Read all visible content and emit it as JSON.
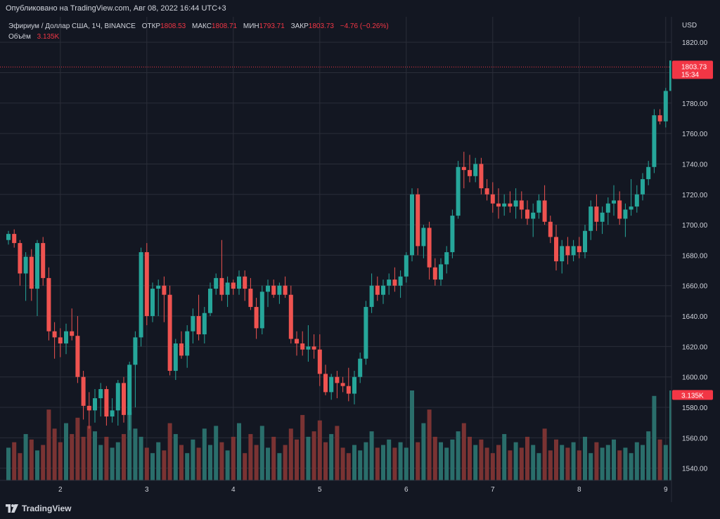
{
  "header": {
    "published": "Опубликовано на TradingView.com, Авг 08, 2022 16:44 UTC+3"
  },
  "legend": {
    "symbol": "Эфириум / Доллар США, 1Ч, BINANCE",
    "open_label": "ОТКР",
    "open": "1808.53",
    "high_label": "МАКС",
    "high": "1808.71",
    "low_label": "МИН",
    "low": "1793.71",
    "close_label": "ЗАКР",
    "close": "1803.73",
    "change": "−4.76 (−0.26%)",
    "volume_label": "Объём",
    "volume": "3.135K"
  },
  "footer": {
    "brand": "TradingView",
    "logo_icon": "tradingview-logo-icon"
  },
  "colors": {
    "background": "#131722",
    "grid": "#2a2e39",
    "up": "#26a69a",
    "down": "#ef5350",
    "up_volume": "#2a6e6b",
    "down_volume": "#7a3333",
    "price_marker": "#f23645",
    "text": "#d1d4dc"
  },
  "chart_data": {
    "type": "candlestick",
    "currency": "USD",
    "price_axis": {
      "ticks": [
        "1820.00",
        "1800.00",
        "1780.00",
        "1760.00",
        "1740.00",
        "1720.00",
        "1700.00",
        "1680.00",
        "1660.00",
        "1640.00",
        "1620.00",
        "1600.00",
        "1580.00",
        "1560.00",
        "1540.00"
      ],
      "ylim": [
        1532,
        1833
      ]
    },
    "time_axis": {
      "ticks": [
        "2",
        "3",
        "4",
        "5",
        "6",
        "7",
        "8",
        "9"
      ],
      "tick_bar_index": [
        9,
        24,
        39,
        54,
        69,
        84,
        99,
        114
      ]
    },
    "last_price": {
      "value": "1803.73",
      "countdown": "15:34"
    },
    "last_volume": "3.135K",
    "volume_max": 3.3,
    "candles": [
      [
        1690,
        1696,
        1687,
        1694,
        1.2
      ],
      [
        1694,
        1697,
        1685,
        1688,
        1.4
      ],
      [
        1688,
        1690,
        1660,
        1668,
        1.0
      ],
      [
        1668,
        1682,
        1650,
        1679,
        1.7
      ],
      [
        1679,
        1684,
        1650,
        1658,
        1.5
      ],
      [
        1658,
        1690,
        1640,
        1688,
        1.1
      ],
      [
        1688,
        1692,
        1660,
        1665,
        1.3
      ],
      [
        1665,
        1672,
        1624,
        1630,
        2.6
      ],
      [
        1630,
        1636,
        1612,
        1626,
        1.9
      ],
      [
        1626,
        1632,
        1613,
        1622,
        1.4
      ],
      [
        1622,
        1635,
        1615,
        1630,
        2.1
      ],
      [
        1630,
        1645,
        1624,
        1627,
        1.7
      ],
      [
        1627,
        1640,
        1596,
        1600,
        2.3
      ],
      [
        1600,
        1604,
        1572,
        1581,
        1.6
      ],
      [
        1581,
        1590,
        1566,
        1578,
        2.0
      ],
      [
        1578,
        1592,
        1570,
        1586,
        1.8
      ],
      [
        1586,
        1596,
        1574,
        1592,
        1.3
      ],
      [
        1592,
        1594,
        1568,
        1574,
        1.6
      ],
      [
        1574,
        1586,
        1570,
        1578,
        1.2
      ],
      [
        1578,
        1598,
        1568,
        1596,
        1.4
      ],
      [
        1596,
        1600,
        1570,
        1575,
        1.7
      ],
      [
        1575,
        1610,
        1565,
        1608,
        2.5
      ],
      [
        1608,
        1630,
        1580,
        1626,
        1.9
      ],
      [
        1626,
        1685,
        1620,
        1682,
        1.6
      ],
      [
        1682,
        1688,
        1634,
        1640,
        1.2
      ],
      [
        1640,
        1662,
        1636,
        1658,
        1.0
      ],
      [
        1658,
        1664,
        1640,
        1660,
        1.4
      ],
      [
        1660,
        1666,
        1636,
        1654,
        1.1
      ],
      [
        1654,
        1660,
        1601,
        1604,
        2.1
      ],
      [
        1604,
        1625,
        1598,
        1622,
        1.7
      ],
      [
        1622,
        1630,
        1612,
        1614,
        1.3
      ],
      [
        1614,
        1634,
        1606,
        1630,
        1.0
      ],
      [
        1630,
        1645,
        1622,
        1640,
        1.5
      ],
      [
        1640,
        1654,
        1624,
        1628,
        1.2
      ],
      [
        1628,
        1646,
        1622,
        1642,
        1.9
      ],
      [
        1642,
        1662,
        1640,
        1658,
        1.3
      ],
      [
        1658,
        1668,
        1654,
        1665,
        2.0
      ],
      [
        1665,
        1690,
        1650,
        1654,
        1.4
      ],
      [
        1654,
        1666,
        1646,
        1662,
        1.1
      ],
      [
        1662,
        1664,
        1654,
        1658,
        1.6
      ],
      [
        1658,
        1670,
        1654,
        1666,
        2.1
      ],
      [
        1666,
        1670,
        1650,
        1658,
        1.0
      ],
      [
        1658,
        1665,
        1644,
        1646,
        1.7
      ],
      [
        1646,
        1652,
        1625,
        1632,
        1.3
      ],
      [
        1632,
        1660,
        1628,
        1656,
        2.0
      ],
      [
        1656,
        1664,
        1646,
        1660,
        1.2
      ],
      [
        1660,
        1664,
        1652,
        1654,
        1.6
      ],
      [
        1654,
        1662,
        1648,
        1660,
        1.0
      ],
      [
        1660,
        1666,
        1652,
        1654,
        1.3
      ],
      [
        1654,
        1660,
        1622,
        1625,
        1.9
      ],
      [
        1625,
        1630,
        1614,
        1622,
        1.5
      ],
      [
        1622,
        1630,
        1614,
        1618,
        2.4
      ],
      [
        1618,
        1634,
        1610,
        1620,
        1.6
      ],
      [
        1620,
        1628,
        1612,
        1618,
        1.8
      ],
      [
        1618,
        1628,
        1594,
        1602,
        2.2
      ],
      [
        1602,
        1608,
        1588,
        1590,
        1.4
      ],
      [
        1590,
        1602,
        1585,
        1600,
        1.7
      ],
      [
        1600,
        1604,
        1586,
        1596,
        2.0
      ],
      [
        1596,
        1600,
        1590,
        1594,
        1.2
      ],
      [
        1594,
        1606,
        1584,
        1589,
        1.0
      ],
      [
        1589,
        1604,
        1582,
        1600,
        1.3
      ],
      [
        1600,
        1616,
        1596,
        1612,
        1.1
      ],
      [
        1612,
        1650,
        1608,
        1646,
        1.4
      ],
      [
        1646,
        1668,
        1642,
        1660,
        1.8
      ],
      [
        1660,
        1666,
        1650,
        1654,
        1.2
      ],
      [
        1654,
        1664,
        1648,
        1660,
        1.3
      ],
      [
        1660,
        1668,
        1654,
        1664,
        1.5
      ],
      [
        1664,
        1672,
        1656,
        1660,
        1.2
      ],
      [
        1660,
        1670,
        1652,
        1666,
        1.4
      ],
      [
        1666,
        1682,
        1662,
        1680,
        1.2
      ],
      [
        1680,
        1724,
        1676,
        1720,
        3.3
      ],
      [
        1720,
        1724,
        1680,
        1686,
        1.4
      ],
      [
        1686,
        1700,
        1678,
        1698,
        2.1
      ],
      [
        1698,
        1702,
        1664,
        1672,
        2.6
      ],
      [
        1672,
        1678,
        1660,
        1664,
        1.6
      ],
      [
        1664,
        1678,
        1660,
        1674,
        1.4
      ],
      [
        1674,
        1686,
        1668,
        1682,
        1.2
      ],
      [
        1682,
        1710,
        1678,
        1706,
        1.5
      ],
      [
        1706,
        1742,
        1704,
        1738,
        1.8
      ],
      [
        1738,
        1748,
        1724,
        1736,
        2.1
      ],
      [
        1736,
        1746,
        1728,
        1732,
        1.6
      ],
      [
        1732,
        1744,
        1728,
        1740,
        1.3
      ],
      [
        1740,
        1744,
        1720,
        1724,
        1.5
      ],
      [
        1724,
        1730,
        1716,
        1720,
        1.2
      ],
      [
        1720,
        1728,
        1708,
        1714,
        1.0
      ],
      [
        1714,
        1724,
        1704,
        1712,
        1.3
      ],
      [
        1712,
        1720,
        1706,
        1714,
        1.7
      ],
      [
        1714,
        1722,
        1708,
        1712,
        1.1
      ],
      [
        1712,
        1724,
        1704,
        1716,
        1.4
      ],
      [
        1716,
        1722,
        1704,
        1710,
        1.2
      ],
      [
        1710,
        1716,
        1700,
        1704,
        1.6
      ],
      [
        1704,
        1714,
        1692,
        1708,
        1.3
      ],
      [
        1708,
        1720,
        1704,
        1716,
        1.0
      ],
      [
        1716,
        1726,
        1700,
        1702,
        1.9
      ],
      [
        1702,
        1706,
        1688,
        1692,
        1.1
      ],
      [
        1692,
        1700,
        1670,
        1676,
        1.5
      ],
      [
        1676,
        1690,
        1668,
        1686,
        1.3
      ],
      [
        1686,
        1692,
        1674,
        1680,
        1.2
      ],
      [
        1680,
        1690,
        1676,
        1686,
        1.4
      ],
      [
        1686,
        1692,
        1678,
        1682,
        1.1
      ],
      [
        1682,
        1700,
        1678,
        1696,
        1.6
      ],
      [
        1696,
        1716,
        1690,
        1712,
        1.0
      ],
      [
        1712,
        1720,
        1696,
        1702,
        1.4
      ],
      [
        1702,
        1712,
        1694,
        1708,
        1.2
      ],
      [
        1708,
        1718,
        1700,
        1714,
        1.3
      ],
      [
        1714,
        1726,
        1706,
        1716,
        1.5
      ],
      [
        1716,
        1722,
        1700,
        1704,
        1.1
      ],
      [
        1704,
        1714,
        1692,
        1710,
        1.2
      ],
      [
        1710,
        1730,
        1706,
        1712,
        1.0
      ],
      [
        1712,
        1726,
        1708,
        1720,
        1.4
      ],
      [
        1720,
        1734,
        1716,
        1730,
        1.3
      ],
      [
        1730,
        1742,
        1726,
        1738,
        1.8
      ],
      [
        1738,
        1776,
        1734,
        1772,
        3.1
      ],
      [
        1772,
        1776,
        1766,
        1768,
        1.5
      ],
      [
        1768,
        1790,
        1764,
        1788,
        1.3
      ],
      [
        1788,
        1818,
        1784,
        1808,
        3.3
      ],
      [
        1808.53,
        1808.71,
        1793.71,
        1803.73,
        3.135
      ]
    ]
  }
}
